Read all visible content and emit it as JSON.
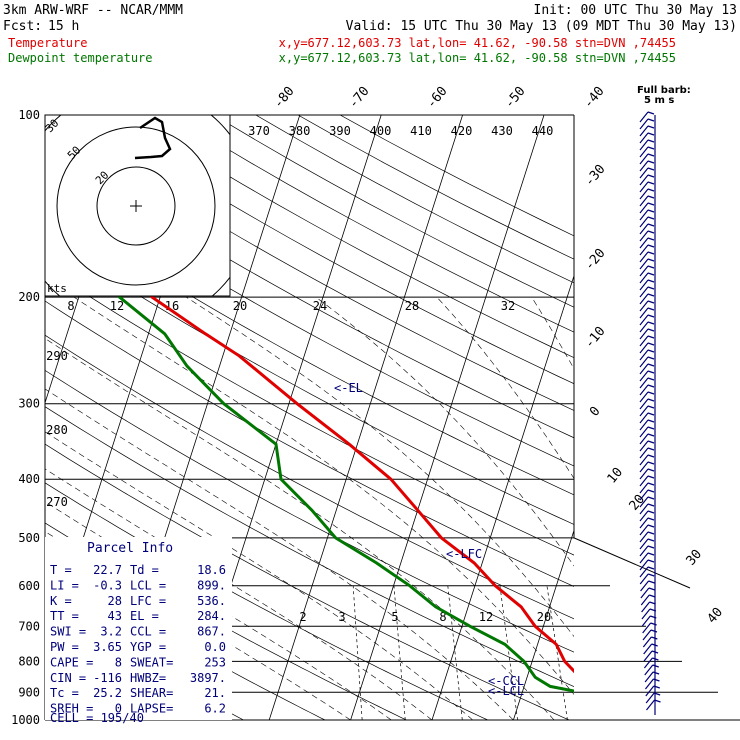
{
  "header": {
    "model": "3km ARW-WRF -- NCAR/MMM",
    "init": "Init: 00 UTC Thu 30 May 13",
    "fcst_label": "Fcst:",
    "fcst_value": "15 h",
    "valid": "Valid: 15 UTC Thu 30 May 13 (09 MDT Thu 30 May 13)",
    "temp_label": "Temperature",
    "temp_info": "x,y=677.12,603.73   lat,lon= 41.62, -90.58  stn=DVN ,74455",
    "dew_label": "Dewpoint temperature",
    "dew_info": "x,y=677.12,603.73   lat,lon= 41.62, -90.58  stn=DVN ,74455"
  },
  "full_barb": [
    "Full barb:",
    "5 m s"
  ],
  "hodograph": {
    "rings": [
      "30",
      "20"
    ],
    "units": "kts",
    "unit_ring": "50"
  },
  "parcel_info": {
    "title": "Parcel Info",
    "rows": [
      [
        "T  =",
        "22.7",
        "Td =",
        "18.6"
      ],
      [
        "LI =",
        "-0.3",
        "LCL =",
        "899."
      ],
      [
        "K  =",
        "28",
        "LFC =",
        "536."
      ],
      [
        "TT =",
        "43",
        "EL  =",
        "284."
      ],
      [
        "SWI =",
        "3.2",
        "CCL =",
        "867."
      ],
      [
        "PW =",
        "3.65",
        "YGP =",
        "0.0"
      ],
      [
        "CAPE =",
        "8",
        "SWEAT=",
        "253"
      ],
      [
        "CIN =",
        "-116",
        "HWBZ=",
        "3897."
      ],
      [
        "Tc =",
        "25.2",
        "SHEAR=",
        "21."
      ],
      [
        "SREH =",
        "0",
        "LAPSE=",
        "6.2"
      ]
    ],
    "cell": "CELL = 195/40"
  },
  "markers": {
    "el": "<-EL",
    "lfc": "<-LFC",
    "ccl": "<-CCL",
    "lcl": "<-LCL"
  },
  "colors": {
    "temperature": "#e00000",
    "dewpoint": "#007700",
    "isobar": "#000000",
    "barb": "#00007a",
    "label_blue": "#00007a"
  },
  "chart_data": {
    "type": "line",
    "title": "",
    "xlabel": "",
    "ylabel": "",
    "y_scale": "log-pressure",
    "pressure_levels": [
      100,
      200,
      300,
      400,
      500,
      600,
      700,
      800,
      900,
      1000
    ],
    "isotherm_labels": [
      "-80",
      "-70",
      "-60",
      "-50",
      "-40",
      "-30",
      "-20",
      "-10",
      "0",
      "10",
      "20",
      "30",
      "40"
    ],
    "theta_labels": [
      "370",
      "380",
      "390",
      "400",
      "410",
      "420",
      "430",
      "440"
    ],
    "mixing_ratio_top_labels": [
      "8",
      "12",
      "16",
      "20",
      "24",
      "28",
      "32"
    ],
    "mixing_ratio_low_labels": [
      "2",
      "3",
      "5",
      "8",
      "12",
      "20"
    ],
    "moist_adiabat_labels": [
      "290",
      "280",
      "270"
    ],
    "series": [
      {
        "name": "Temperature",
        "points": [
          [
            1000,
            26
          ],
          [
            985,
            22.7
          ],
          [
            950,
            21
          ],
          [
            900,
            18.5
          ],
          [
            850,
            16.5
          ],
          [
            800,
            14
          ],
          [
            750,
            12.3
          ],
          [
            700,
            9
          ],
          [
            650,
            6.5
          ],
          [
            600,
            2.5
          ],
          [
            550,
            -1
          ],
          [
            500,
            -6
          ],
          [
            450,
            -10
          ],
          [
            400,
            -14.5
          ],
          [
            350,
            -21
          ],
          [
            300,
            -29
          ],
          [
            250,
            -38
          ],
          [
            230,
            -43
          ],
          [
            200,
            -51
          ],
          [
            180,
            -54
          ],
          [
            160,
            -56
          ],
          [
            140,
            -58
          ],
          [
            120,
            -57
          ],
          [
            105,
            -54
          ],
          [
            100,
            -53
          ]
        ]
      },
      {
        "name": "Dewpoint temperature",
        "points": [
          [
            970,
            18.6
          ],
          [
            950,
            18.5
          ],
          [
            920,
            18
          ],
          [
            900,
            17.2
          ],
          [
            880,
            13.2
          ],
          [
            850,
            11
          ],
          [
            800,
            9
          ],
          [
            750,
            6
          ],
          [
            700,
            1
          ],
          [
            650,
            -4
          ],
          [
            600,
            -8
          ],
          [
            550,
            -13
          ],
          [
            500,
            -19
          ],
          [
            450,
            -23
          ],
          [
            400,
            -28
          ],
          [
            350,
            -30
          ],
          [
            300,
            -38
          ],
          [
            260,
            -44
          ],
          [
            230,
            -48
          ],
          [
            200,
            -55
          ],
          [
            180,
            -58
          ],
          [
            160,
            -59
          ],
          [
            140,
            -59
          ],
          [
            120,
            -59
          ],
          [
            100,
            -61
          ]
        ]
      }
    ]
  }
}
